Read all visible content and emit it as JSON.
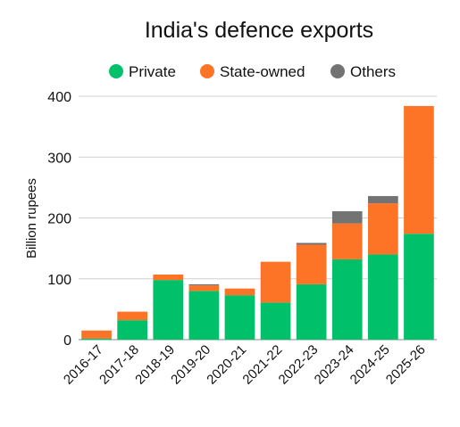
{
  "chart_data": {
    "type": "bar",
    "stacked": true,
    "title": "India's defence exports",
    "xlabel": "",
    "ylabel": "Billion rupees",
    "ylim": [
      0,
      400
    ],
    "yticks": [
      0,
      100,
      200,
      300,
      400
    ],
    "grid": true,
    "legend_position": "top",
    "categories": [
      "2016-17",
      "2017-18",
      "2018-19",
      "2019-20",
      "2020-21",
      "2021-22",
      "2022-23",
      "2023-24",
      "2024-25",
      "2025-26"
    ],
    "series": [
      {
        "name": "Private",
        "color": "#00c16a",
        "values": [
          2,
          32,
          98,
          80,
          73,
          61,
          91,
          132,
          140,
          174
        ]
      },
      {
        "name": "State-owned",
        "color": "#fd7427",
        "values": [
          13,
          14,
          9,
          9,
          11,
          67,
          65,
          59,
          84,
          210
        ]
      },
      {
        "name": "Others",
        "color": "#737373",
        "values": [
          0,
          0,
          0,
          2,
          0,
          0,
          3,
          20,
          12,
          0
        ]
      }
    ]
  }
}
